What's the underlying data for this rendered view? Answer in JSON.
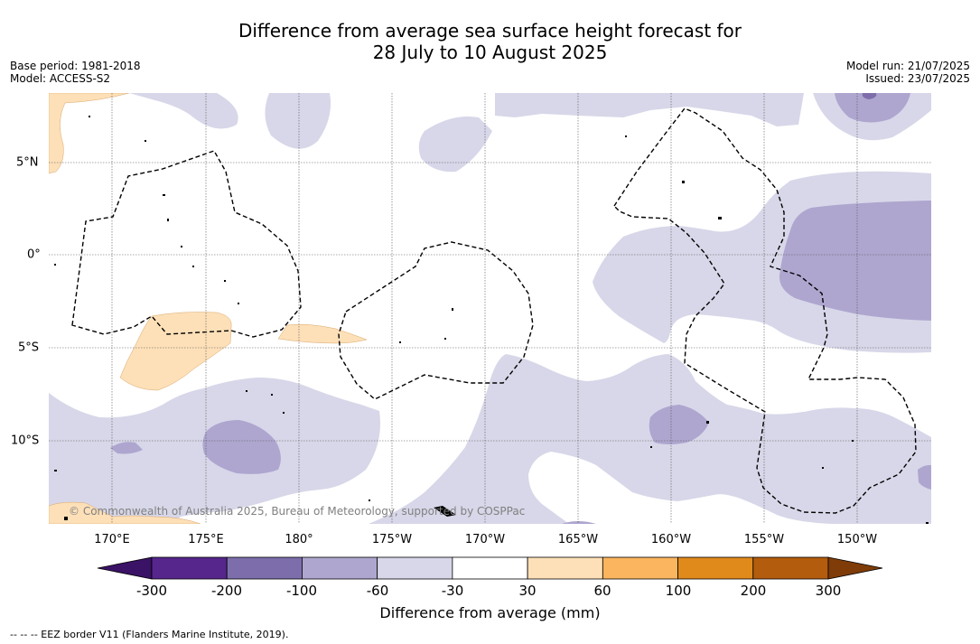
{
  "title_line1": "Difference from average sea surface height forecast for",
  "title_line2": "28 July to 10 August 2025",
  "meta_left": {
    "base_period": "Base period: 1981-2018",
    "model": "Model: ACCESS-S2"
  },
  "meta_right": {
    "model_run": "Model run: 21/07/2025",
    "issued": "Issued: 23/07/2025"
  },
  "lon_labels": [
    "170°E",
    "175°E",
    "180°",
    "175°W",
    "170°W",
    "165°W",
    "160°W",
    "155°W",
    "150°W"
  ],
  "lat_labels": [
    "5°N",
    "0°",
    "5°S",
    "10°S"
  ],
  "copyright": "© Commonwealth of Australia 2025, Bureau of Meteorology, supported by COSPPac",
  "colorbar": {
    "ticks": [
      "-300",
      "-200",
      "-100",
      "-60",
      "-30",
      "30",
      "60",
      "100",
      "200",
      "300"
    ],
    "colors": [
      "#3a1266",
      "#56268c",
      "#7d6eab",
      "#aea6cf",
      "#d7d7e9",
      "#ffffff",
      "#fde0b8",
      "#fbb55f",
      "#e08a1c",
      "#b35c0d",
      "#7f3c08"
    ],
    "label": "Difference from average (mm)"
  },
  "footnote": "--  --  -- EEZ border V11 (Flanders Marine Institute, 2019)."
}
